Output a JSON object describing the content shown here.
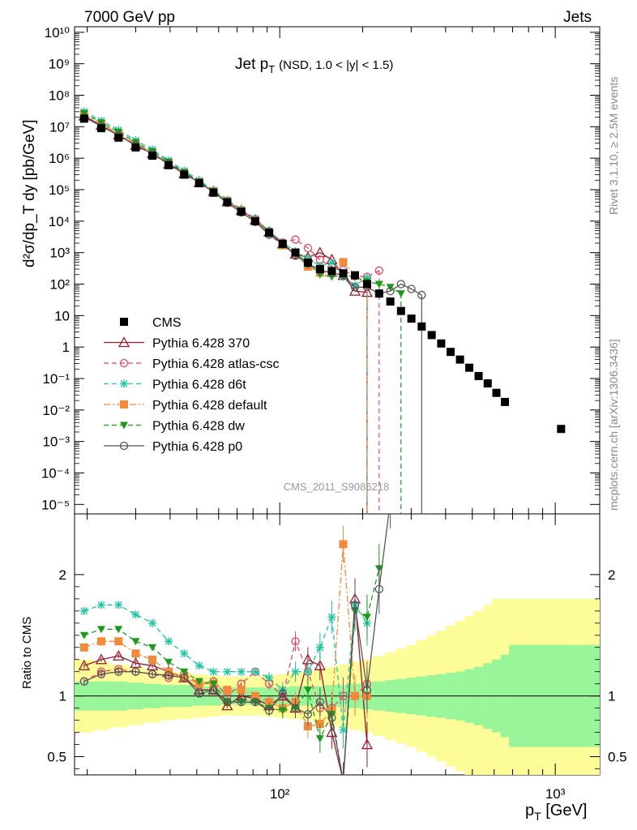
{
  "header": {
    "left": "7000 GeV pp",
    "right": "Jets",
    "side_top": "Rivet 3.1.10, ≥ 2.5M events",
    "side_bottom": "mcplots.cern.ch [arXiv:1306.3436]",
    "watermark": "CMS_2011_S9086218"
  },
  "plot_title": {
    "main": "Jet p",
    "sub": "T",
    "detail": "(NSD, 1.0 < |y| < 1.5)"
  },
  "y_axis": {
    "label": "d²σ/dp_T dy [pb/GeV]"
  },
  "x_axis": {
    "label_main": "p",
    "label_sub": "T",
    "label_unit": " [GeV]"
  },
  "ratio_axis": {
    "label": "Ratio to CMS"
  },
  "chart_data": [
    {
      "type": "scatter",
      "scale": "log-log",
      "xlim": [
        18,
        1450
      ],
      "ylim": [
        5e-06,
        15000000000
      ],
      "ytick_labels": [
        "10⁻⁵",
        "10⁻⁴",
        "10⁻³",
        "10⁻²",
        "10⁻¹",
        "1",
        "10",
        "10²",
        "10³",
        "10⁴",
        "10⁵",
        "10⁶",
        "10⁷",
        "10⁸",
        "10⁹",
        "10¹⁰"
      ],
      "xtick_labels": [
        "10²",
        "10³"
      ],
      "legend_position": "left-middle",
      "series": [
        {
          "name": "CMS",
          "color": "#000000",
          "marker": "square-filled",
          "x": [
            19.5,
            22.5,
            26,
            30,
            34.5,
            39.5,
            45,
            51,
            57.5,
            64.5,
            72.5,
            81.5,
            91.5,
            102.5,
            114,
            126.5,
            140,
            154.5,
            170,
            187.5,
            207.5,
            229.5,
            252,
            275.5,
            300.5,
            327.5,
            356,
            385.5,
            417,
            451,
            487.5,
            527,
            568.5,
            611.5,
            656.5,
            1050
          ],
          "y": [
            18000000,
            9000000,
            4500000,
            2200000,
            1200000,
            600000,
            300000,
            160000,
            80000,
            40000,
            20000,
            10000,
            4300,
            1900,
            1000,
            480,
            300,
            260,
            220,
            190,
            100,
            50,
            28,
            14,
            8,
            4.5,
            2.4,
            1.3,
            0.7,
            0.4,
            0.22,
            0.12,
            0.07,
            0.035,
            0.018,
            0.0025
          ]
        },
        {
          "name": "Pythia 6.428 370",
          "color": "#9b1b2b",
          "marker": "triangle-open",
          "dash": "solid",
          "x": [
            19.5,
            22.5,
            26,
            30,
            34.5,
            39.5,
            45,
            51,
            57.5,
            64.5,
            72.5,
            81.5,
            91.5,
            102.5,
            114,
            126.5,
            140,
            154.5,
            170,
            187.5,
            207.5
          ],
          "y": [
            22000000,
            11000000,
            5500000,
            2600000,
            1400000,
            650000,
            320000,
            170000,
            88000,
            42000,
            22000,
            11000,
            4500,
            1900,
            900,
            700,
            1000,
            600,
            190,
            60,
            55
          ]
        },
        {
          "name": "Pythia 6.428 atlas-csc",
          "color": "#e8455f",
          "marker": "circle-open",
          "dash": "dashed",
          "x": [
            19.5,
            22.5,
            26,
            30,
            34.5,
            39.5,
            45,
            51,
            57.5,
            64.5,
            72.5,
            81.5,
            91.5,
            102.5,
            114,
            126.5,
            140,
            154.5,
            170,
            187.5,
            207.5,
            229.5
          ],
          "y": [
            20000000,
            10500000,
            5300000,
            2500000,
            1350000,
            640000,
            320000,
            170000,
            87000,
            44000,
            22000,
            11500,
            4800,
            2100,
            2600,
            1400,
            600,
            350,
            280,
            180,
            170,
            270
          ]
        },
        {
          "name": "Pythia 6.428 d6t",
          "color": "#1fc7a3",
          "marker": "star",
          "dash": "dashed",
          "x": [
            19.5,
            22.5,
            26,
            30,
            34.5,
            39.5,
            45,
            51,
            57.5,
            64.5,
            72.5,
            81.5,
            91.5,
            102.5,
            114,
            126.5,
            140,
            154.5,
            170,
            187.5,
            207.5
          ],
          "y": [
            30000000,
            15500000,
            7800000,
            3700000,
            1900000,
            850000,
            400000,
            200000,
            95000,
            48000,
            24000,
            12000,
            4900,
            2100,
            1100,
            650,
            380,
            480,
            170,
            90,
            160
          ]
        },
        {
          "name": "Pythia 6.428 default",
          "color": "#f28a3b",
          "marker": "square-filled",
          "dash": "dashdot",
          "x": [
            19.5,
            22.5,
            26,
            30,
            34.5,
            39.5,
            45,
            51,
            57.5,
            64.5,
            72.5,
            81.5,
            91.5,
            102.5,
            114,
            126.5,
            140,
            154.5,
            170,
            187.5,
            207.5
          ],
          "y": [
            25000000,
            12500000,
            6200000,
            2900000,
            1500000,
            700000,
            340000,
            175000,
            88000,
            42000,
            21000,
            10500,
            4200,
            1700,
            1000,
            360,
            230,
            230,
            500,
            190,
            100
          ]
        },
        {
          "name": "Pythia 6.428 dw",
          "color": "#1c9a1c",
          "marker": "triangle-down-filled",
          "dash": "dashed",
          "x": [
            19.5,
            22.5,
            26,
            30,
            34.5,
            39.5,
            45,
            51,
            57.5,
            64.5,
            72.5,
            81.5,
            91.5,
            102.5,
            114,
            126.5,
            140,
            154.5,
            170,
            187.5,
            207.5,
            229.5,
            252,
            275.5
          ],
          "y": [
            27000000,
            13500000,
            6800000,
            3200000,
            1650000,
            770000,
            360000,
            180000,
            90000,
            40000,
            19000,
            9500,
            3900,
            1700,
            900,
            500,
            200,
            170,
            190,
            170,
            120,
            100,
            80,
            50
          ]
        },
        {
          "name": "Pythia 6.428 p0",
          "color": "#555555",
          "marker": "circle-open",
          "dash": "solid",
          "x": [
            19.5,
            22.5,
            26,
            30,
            34.5,
            39.5,
            45,
            51,
            57.5,
            64.5,
            72.5,
            81.5,
            91.5,
            102.5,
            114,
            126.5,
            140,
            154.5,
            170,
            187.5,
            207.5,
            229.5,
            252,
            275.5,
            300.5,
            327.5
          ],
          "y": [
            20000000,
            10500000,
            5300000,
            2600000,
            1400000,
            680000,
            330000,
            170000,
            83000,
            38000,
            19000,
            9500,
            3700,
            1900,
            800,
            450,
            280,
            230,
            190,
            80,
            80,
            50,
            60,
            100,
            70,
            45
          ]
        }
      ]
    },
    {
      "type": "line",
      "scale": "log-x",
      "xlim": [
        18,
        1450
      ],
      "ylim": [
        0.35,
        2.5
      ],
      "ytick_labels": [
        "0.5",
        "1",
        "2"
      ],
      "bin_edges": [
        18,
        21,
        24,
        28,
        32,
        37,
        42,
        48,
        54,
        61,
        68,
        77,
        86,
        97,
        108,
        120,
        133,
        147,
        162,
        178,
        197,
        218,
        241,
        263,
        288,
        313,
        342,
        370,
        401,
        433,
        469,
        506,
        548,
        589,
        634,
        679,
        1450
      ],
      "band_inner": [
        0.12,
        0.12,
        0.12,
        0.11,
        0.1,
        0.09,
        0.09,
        0.08,
        0.08,
        0.07,
        0.07,
        0.07,
        0.07,
        0.07,
        0.08,
        0.08,
        0.08,
        0.09,
        0.09,
        0.1,
        0.11,
        0.12,
        0.13,
        0.14,
        0.15,
        0.16,
        0.17,
        0.18,
        0.19,
        0.2,
        0.22,
        0.24,
        0.27,
        0.3,
        0.34,
        0.42
      ],
      "band_outer": [
        0.3,
        0.28,
        0.26,
        0.24,
        0.22,
        0.2,
        0.19,
        0.18,
        0.17,
        0.16,
        0.16,
        0.16,
        0.17,
        0.18,
        0.19,
        0.2,
        0.22,
        0.24,
        0.26,
        0.28,
        0.3,
        0.33,
        0.36,
        0.39,
        0.42,
        0.46,
        0.5,
        0.54,
        0.58,
        0.62,
        0.66,
        0.7,
        0.75,
        0.8,
        0.8,
        0.8
      ],
      "band_colors": {
        "inner": "#99f599",
        "outer": "#fcfc99"
      },
      "series": [
        {
          "name": "Pythia 6.428 370",
          "color": "#9b1b2b",
          "x": [
            19.5,
            22.5,
            26,
            30,
            34.5,
            39.5,
            45,
            51,
            57.5,
            64.5,
            72.5,
            81.5,
            91.5,
            102.5,
            114,
            126.5,
            140,
            154.5,
            170,
            187.5,
            207.5
          ],
          "y": [
            1.25,
            1.3,
            1.33,
            1.27,
            1.25,
            1.2,
            1.15,
            1.05,
            1.05,
            0.92,
            1.0,
            0.98,
            0.92,
            1.0,
            0.9,
            1.3,
            1.25,
            0.7,
            0.3,
            1.8,
            0.6
          ]
        },
        {
          "name": "Pythia 6.428 atlas-csc",
          "color": "#e8455f",
          "x": [
            19.5,
            22.5,
            26,
            30,
            34.5,
            39.5,
            45,
            51,
            57.5,
            64.5,
            72.5,
            81.5,
            91.5,
            102.5,
            114,
            126.5,
            140,
            154.5,
            170,
            187.5,
            207.5
          ],
          "y": [
            1.12,
            1.2,
            1.22,
            1.2,
            1.18,
            1.15,
            1.18,
            1.1,
            1.12,
            1.0,
            1.1,
            1.2,
            1.1,
            1.0,
            1.45,
            1.2,
            0.9,
            0.9,
            1.0,
            1.0,
            1.1
          ]
        },
        {
          "name": "Pythia 6.428 d6t",
          "color": "#1fc7a3",
          "x": [
            19.5,
            22.5,
            26,
            30,
            34.5,
            39.5,
            45,
            51,
            57.5,
            64.5,
            72.5,
            81.5,
            91.5,
            102.5,
            114,
            126.5,
            140,
            154.5,
            170,
            187.5,
            207.5
          ],
          "y": [
            1.7,
            1.75,
            1.75,
            1.67,
            1.6,
            1.45,
            1.35,
            1.25,
            1.2,
            1.2,
            1.2,
            1.2,
            1.15,
            1.05,
            1.2,
            1.2,
            1.4,
            1.65,
            0.72,
            1.75,
            1.6
          ]
        },
        {
          "name": "Pythia 6.428 default",
          "color": "#f28a3b",
          "x": [
            19.5,
            22.5,
            26,
            30,
            34.5,
            39.5,
            45,
            51,
            57.5,
            64.5,
            72.5,
            81.5,
            91.5,
            102.5,
            114,
            126.5,
            140,
            154.5,
            170,
            187.5,
            207.5
          ],
          "y": [
            1.4,
            1.45,
            1.45,
            1.35,
            1.3,
            1.2,
            1.15,
            1.1,
            1.1,
            1.05,
            1.05,
            1.0,
            0.95,
            0.9,
            0.95,
            0.75,
            0.77,
            0.88,
            2.25,
            1.0,
            1.0
          ]
        },
        {
          "name": "Pythia 6.428 dw",
          "color": "#1c9a1c",
          "x": [
            19.5,
            22.5,
            26,
            30,
            34.5,
            39.5,
            45,
            51,
            57.5,
            64.5,
            72.5,
            81.5,
            91.5,
            102.5,
            114,
            126.5,
            140,
            154.5,
            170,
            187.5,
            207.5,
            229.5
          ],
          "y": [
            1.5,
            1.55,
            1.55,
            1.45,
            1.4,
            1.28,
            1.2,
            1.12,
            1.1,
            0.95,
            0.95,
            0.95,
            0.9,
            0.88,
            0.9,
            1.05,
            0.65,
            0.85,
            0.3,
            1.7,
            1.65,
            2.05
          ]
        },
        {
          "name": "Pythia 6.428 p0",
          "color": "#555555",
          "x": [
            19.5,
            22.5,
            26,
            30,
            34.5,
            39.5,
            45,
            51,
            57.5,
            64.5,
            72.5,
            81.5,
            91.5,
            102.5,
            114,
            126.5,
            140,
            154.5,
            170,
            187.5,
            207.5,
            229.5,
            252
          ],
          "y": [
            1.12,
            1.18,
            1.2,
            1.2,
            1.18,
            1.17,
            1.15,
            1.02,
            1.05,
            0.95,
            0.95,
            0.95,
            0.88,
            1.02,
            0.9,
            0.85,
            0.95,
            0.82,
            0.3,
            1.75,
            1.05,
            1.88,
            2.6
          ]
        }
      ]
    }
  ]
}
